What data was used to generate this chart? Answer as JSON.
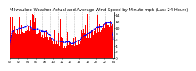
{
  "title": "Milwaukee Weather Actual and Average Wind Speed by Minute mph (Last 24 Hours)",
  "n_points": 1440,
  "y_max": 15,
  "y_min": 0,
  "yticks": [
    0,
    2,
    4,
    6,
    8,
    10,
    12,
    14
  ],
  "bar_color": "#ff0000",
  "line_color": "#0000ff",
  "background_color": "#ffffff",
  "grid_color": "#888888",
  "title_fontsize": 3.8,
  "tick_fontsize": 3.2,
  "seed": 42
}
